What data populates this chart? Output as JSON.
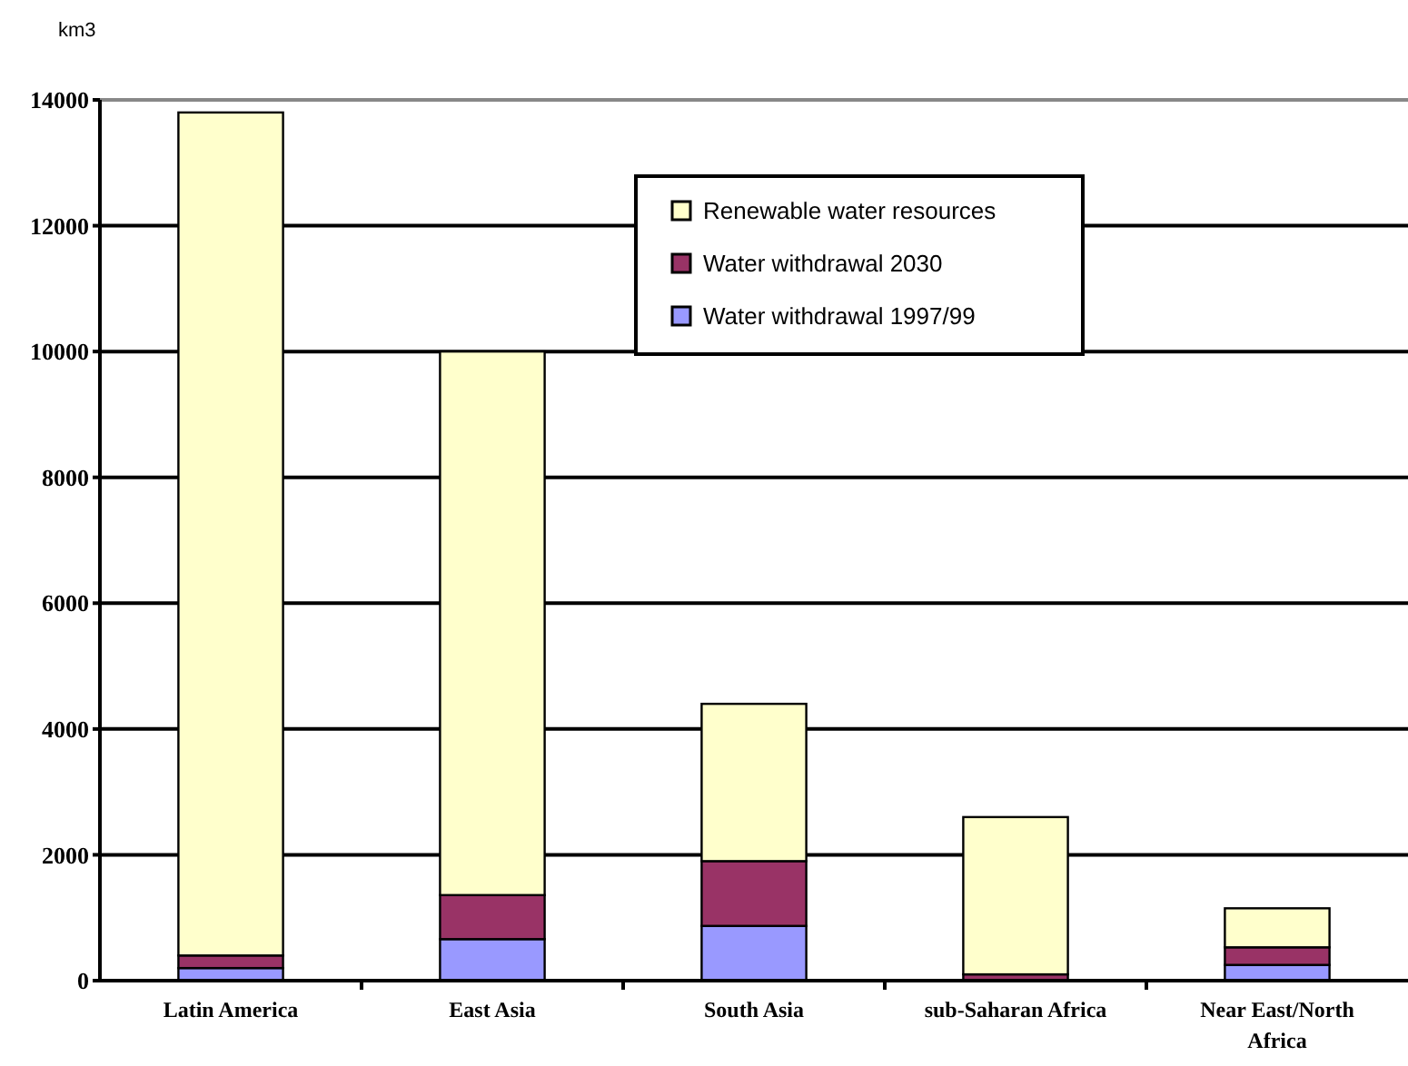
{
  "chart_data": {
    "type": "bar",
    "ylabel": "km3",
    "stacked": true,
    "categories": [
      "Latin America",
      "East Asia",
      "South Asia",
      "sub-Saharan Africa",
      "Near East/North Africa"
    ],
    "series": [
      {
        "name": "Water withdrawal 1997/99",
        "color": "#9999ff",
        "values": [
          200,
          660,
          870,
          null,
          250
        ]
      },
      {
        "name": "Water withdrawal 2030",
        "color": "#993366",
        "values": [
          200,
          700,
          1030,
          100,
          280
        ]
      },
      {
        "name": "Renewable water resources",
        "color": "#ffffcc",
        "values": [
          13400,
          8640,
          2500,
          2500,
          620
        ]
      }
    ],
    "ylim": [
      0,
      14000
    ],
    "yticks": [
      0,
      2000,
      4000,
      6000,
      8000,
      10000,
      12000,
      14000
    ],
    "grid": "y",
    "legend": "top"
  }
}
